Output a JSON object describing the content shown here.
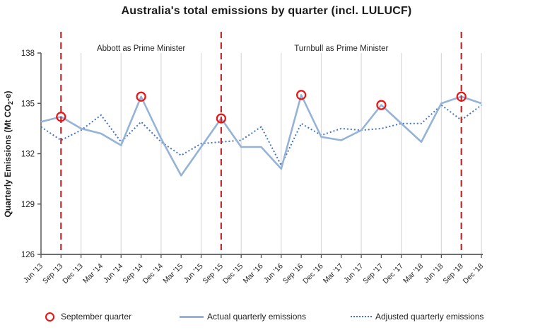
{
  "title": "Australia's total emissions by quarter (incl. LULUCF)",
  "legend": {
    "september": "September quarter",
    "actual": "Actual quarterly emissions",
    "adjusted": "Adjusted quarterly emissions"
  },
  "colors": {
    "actual_line": "#95B3D7",
    "adjusted_line": "#4472C4",
    "september_marker": "#ee1111",
    "pm_divider": "#c62828",
    "gridline": "#d9d9d9",
    "axis": "#595959",
    "text": "#262626"
  },
  "chart_data": {
    "type": "line",
    "title": "Australia's total emissions by quarter (incl. LULUCF)",
    "ylabel": "Quarterly Emissions (Mt CO2-e)",
    "ylabel_parts": {
      "prefix": "Quarterly Emissions (Mt CO",
      "subscript": "2",
      "suffix": "-e)"
    },
    "xlabel": "",
    "ylim": [
      126,
      138
    ],
    "y_ticks": [
      126,
      129,
      132,
      135,
      138
    ],
    "grid": "vertical gridlines at June and December quarters",
    "legend_position": "bottom",
    "categories": [
      "Jun '13",
      "Sep '13",
      "Dec '13",
      "Mar '14",
      "Jun '14",
      "Sep '14",
      "Dec '14",
      "Mar '15",
      "Jun '15",
      "Sep '15",
      "Dec '15",
      "Mar '16",
      "Jun '16",
      "Sep '16",
      "Dec '16",
      "Mar '17",
      "Jun '17",
      "Sep '17",
      "Dec '17",
      "Mar '18",
      "Jun '18",
      "Sep '18",
      "Dec '18"
    ],
    "series": [
      {
        "name": "Actual quarterly emissions",
        "style": "solid",
        "values": [
          133.9,
          134.2,
          133.5,
          133.2,
          132.5,
          135.4,
          132.9,
          130.7,
          132.4,
          134.1,
          132.4,
          132.4,
          131.1,
          135.5,
          133.0,
          132.8,
          133.4,
          134.9,
          133.8,
          132.7,
          135.0,
          135.4,
          135.0
        ]
      },
      {
        "name": "Adjusted quarterly emissions",
        "style": "dotted",
        "values": [
          133.6,
          132.8,
          133.4,
          134.3,
          132.7,
          133.9,
          132.7,
          131.9,
          132.6,
          132.7,
          132.8,
          133.6,
          131.3,
          133.8,
          133.1,
          133.5,
          133.4,
          133.5,
          133.8,
          133.8,
          134.9,
          134.0,
          134.9
        ]
      }
    ],
    "september_marker_indices": [
      1,
      5,
      9,
      13,
      17,
      21
    ],
    "pm_transition_line_indices": [
      1,
      9,
      21
    ],
    "annotations": [
      {
        "label": "Abbott as Prime Minister",
        "between_indices": [
          1,
          9
        ]
      },
      {
        "label": "Turnbull as Prime Minister",
        "between_indices": [
          9,
          21
        ]
      }
    ]
  }
}
